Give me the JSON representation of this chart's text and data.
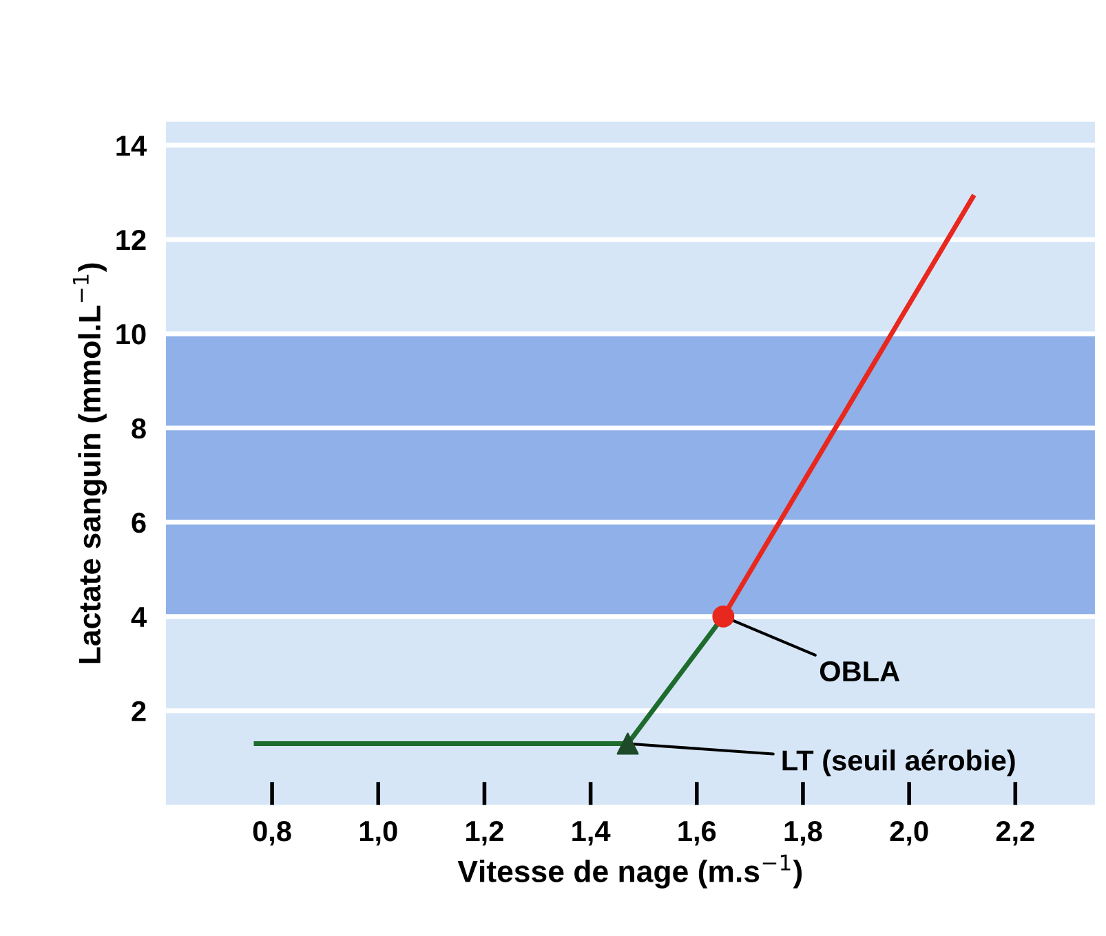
{
  "chart_data": {
    "type": "line",
    "xlabel": "Vitesse de nage (m.s$^{−1}$)",
    "ylabel": "Lactate sanguin (mmol.L$^{−1}$)",
    "series": [
      {
        "color": "#1e6b2e",
        "x": [
          0.77,
          1.47,
          1.65
        ],
        "values": [
          1.3,
          1.3,
          4.0
        ]
      },
      {
        "color": "#e8281e",
        "x": [
          1.65,
          2.12
        ],
        "values": [
          4.0,
          12.9
        ]
      },
      {
        "type": "scatter",
        "color": "#1e4a2a",
        "marker": "triangle",
        "x": [
          1.47
        ],
        "values": [
          1.3
        ]
      },
      {
        "type": "scatter",
        "color": "#e8281e",
        "marker": "circle",
        "x": [
          1.65
        ],
        "values": [
          4.0
        ]
      }
    ],
    "annotations": [
      {
        "text": "OBLA",
        "x": 1.65,
        "y": 4.0
      },
      {
        "text": "LT (seuil aérobie)",
        "x": 1.47,
        "y": 1.3
      }
    ],
    "bands": [
      {
        "axis": "y",
        "from": 4,
        "to": 10,
        "color": "#8fb0e8"
      }
    ],
    "xlim": [
      0.6,
      2.35
    ],
    "ylim": [
      0,
      14.5
    ],
    "xticks": [
      {
        "value": 0.8,
        "label": "0,8"
      },
      {
        "value": 1.0,
        "label": "1,0"
      },
      {
        "value": 1.2,
        "label": "1,2"
      },
      {
        "value": 1.4,
        "label": "1,4"
      },
      {
        "value": 1.6,
        "label": "1,6"
      },
      {
        "value": 1.8,
        "label": "1,8"
      },
      {
        "value": 2.0,
        "label": "2,0"
      },
      {
        "value": 2.2,
        "label": "2,2"
      }
    ],
    "yticks": [
      2,
      4,
      6,
      8,
      10,
      12,
      14
    ],
    "grid": "y"
  }
}
